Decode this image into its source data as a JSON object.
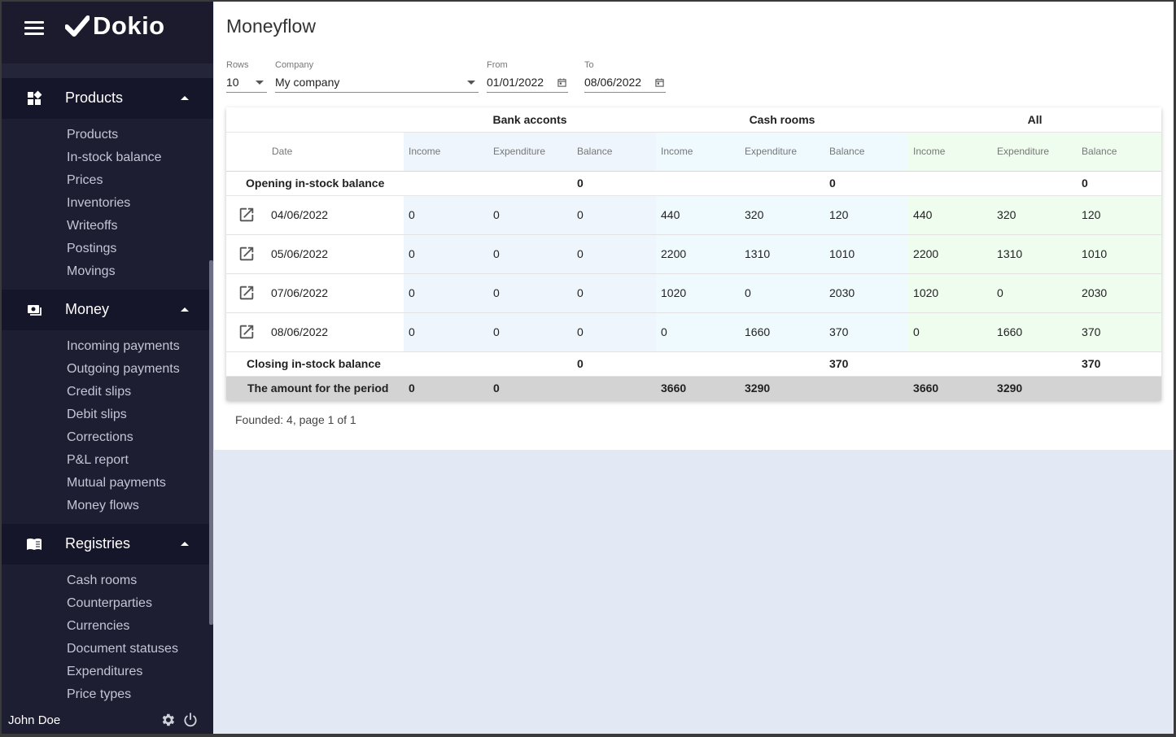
{
  "app": {
    "name": "Dokio"
  },
  "sidebar": {
    "groups": [
      {
        "label": "Products",
        "items": [
          "Products",
          "In-stock balance",
          "Prices",
          "Inventories",
          "Writeoffs",
          "Postings",
          "Movings"
        ]
      },
      {
        "label": "Money",
        "items": [
          "Incoming payments",
          "Outgoing payments",
          "Credit slips",
          "Debit slips",
          "Corrections",
          "P&L report",
          "Mutual payments",
          "Money flows"
        ]
      },
      {
        "label": "Registries",
        "items": [
          "Cash rooms",
          "Counterparties",
          "Currencies",
          "Document statuses",
          "Expenditures",
          "Price types"
        ]
      }
    ],
    "user": "John Doe"
  },
  "page": {
    "title": "Moneyflow"
  },
  "filters": {
    "rows": {
      "label": "Rows",
      "value": "10"
    },
    "company": {
      "label": "Company",
      "value": "My company"
    },
    "from": {
      "label": "From",
      "value": "01/01/2022"
    },
    "to": {
      "label": "To",
      "value": "08/06/2022"
    }
  },
  "table": {
    "groups": [
      "Bank acconts",
      "Cash rooms",
      "All"
    ],
    "date_header": "Date",
    "sub_headers": [
      "Income",
      "Expenditure",
      "Balance"
    ],
    "opening": {
      "label": "Opening in-stock balance",
      "bank_balance": "0",
      "cash_balance": "0",
      "all_balance": "0"
    },
    "rows": [
      {
        "date": "04/06/2022",
        "cells": [
          "0",
          "0",
          "0",
          "440",
          "320",
          "120",
          "440",
          "320",
          "120"
        ]
      },
      {
        "date": "05/06/2022",
        "cells": [
          "0",
          "0",
          "0",
          "2200",
          "1310",
          "1010",
          "2200",
          "1310",
          "1010"
        ]
      },
      {
        "date": "07/06/2022",
        "cells": [
          "0",
          "0",
          "0",
          "1020",
          "0",
          "2030",
          "1020",
          "0",
          "2030"
        ]
      },
      {
        "date": "08/06/2022",
        "cells": [
          "0",
          "0",
          "0",
          "0",
          "1660",
          "370",
          "0",
          "1660",
          "370"
        ]
      }
    ],
    "closing": {
      "label": "Closing in-stock balance",
      "bank_balance": "0",
      "cash_balance": "370",
      "all_balance": "370"
    },
    "totals": {
      "label": "The amount for the period",
      "cells": [
        "0",
        "0",
        "",
        "3660",
        "3290",
        "",
        "3660",
        "3290",
        ""
      ]
    }
  },
  "footer_info": "Founded: 4, page 1 of 1",
  "colors": {
    "sidebar_bg": "#1e1e32",
    "sidebar_group_bg": "#16162a",
    "bank_col": "#eff5fd",
    "cash_col": "#effaff",
    "all_col": "#eefdee",
    "totals_bg": "#d3d3d3"
  }
}
